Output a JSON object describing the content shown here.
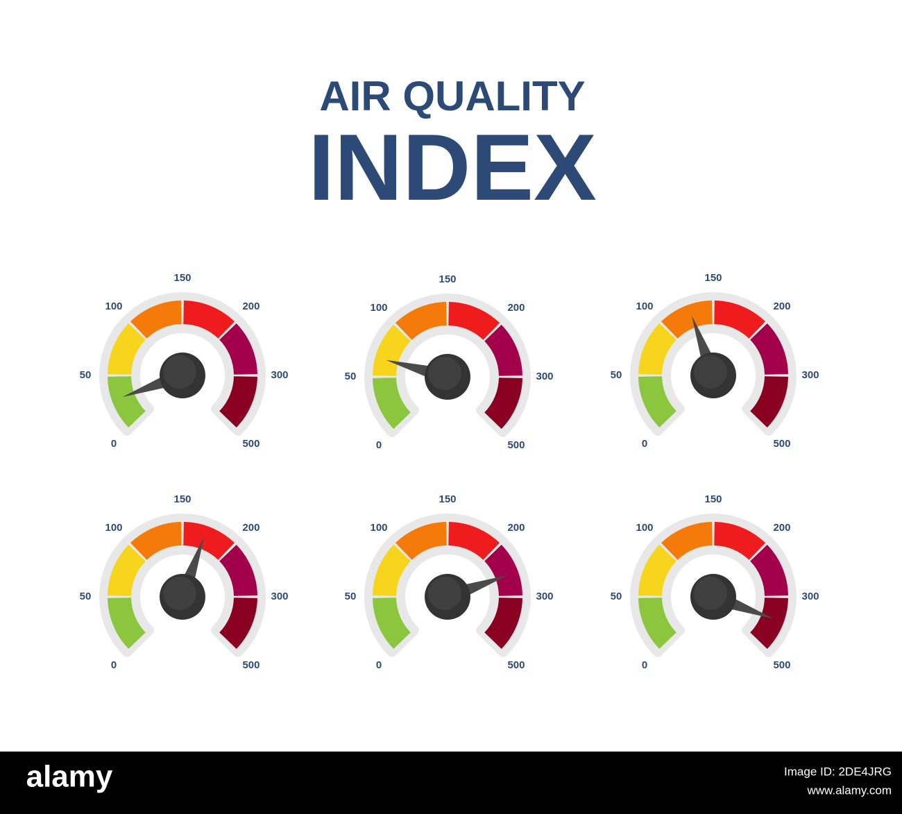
{
  "header": {
    "line1": "AIR QUALITY",
    "line2": "INDEX"
  },
  "scale": {
    "labels": [
      0,
      50,
      100,
      150,
      200,
      300,
      500
    ],
    "colors": [
      "#8cc63f",
      "#f7d51d",
      "#f47b0a",
      "#ee1c1c",
      "#a3004b",
      "#8a0020"
    ]
  },
  "gauges": [
    {
      "value": 28
    },
    {
      "value": 67
    },
    {
      "value": 128
    },
    {
      "value": 172
    },
    {
      "value": 256
    },
    {
      "value": 389
    }
  ],
  "footer": {
    "brand": "alamy",
    "image_id": "Image ID: 2DE4JRG",
    "url": "www.alamy.com"
  }
}
